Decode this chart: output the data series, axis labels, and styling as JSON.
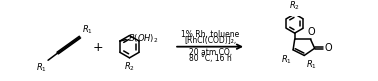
{
  "bg_color": "#ffffff",
  "text_color": "#000000",
  "condition_line1": "[RhCl(COD)]₂,",
  "condition_line2": "1% Rh, toluene",
  "condition_line3": "20 atm CO,",
  "condition_line4": "80 °C, 16 h",
  "plus_sign": "+",
  "figsize": [
    3.78,
    0.81
  ],
  "dpi": 100
}
